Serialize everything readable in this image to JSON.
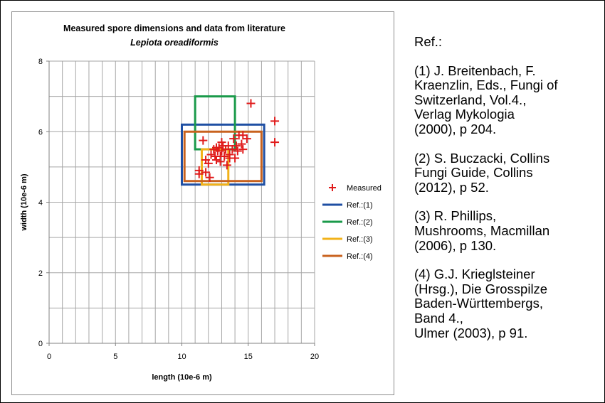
{
  "chart_data": {
    "type": "scatter",
    "title": "Measured spore dimensions and data from literature",
    "subtitle": "Lepiota oreadiformis",
    "xlabel": "length (10e-6 m)",
    "ylabel": "width (10e-6 m)",
    "xlim": [
      0,
      20
    ],
    "ylim": [
      0,
      8
    ],
    "x_ticks": [
      "0",
      "5",
      "10",
      "15",
      "20"
    ],
    "y_ticks": [
      "0",
      "2",
      "4",
      "6",
      "8"
    ],
    "grid": true,
    "legend_position": "right",
    "series": [
      {
        "name": "Measured",
        "marker": "plus",
        "color": "#e01b1b",
        "points": [
          [
            15.2,
            6.8
          ],
          [
            17.0,
            6.3
          ],
          [
            17.0,
            5.7
          ],
          [
            14.6,
            5.9
          ],
          [
            14.3,
            5.9
          ],
          [
            13.9,
            5.8
          ],
          [
            14.9,
            5.8
          ],
          [
            14.5,
            5.65
          ],
          [
            14.1,
            5.6
          ],
          [
            14.6,
            5.5
          ],
          [
            14.2,
            5.45
          ],
          [
            13.8,
            5.5
          ],
          [
            13.5,
            5.6
          ],
          [
            13.1,
            5.6
          ],
          [
            12.8,
            5.55
          ],
          [
            12.6,
            5.55
          ],
          [
            12.4,
            5.5
          ],
          [
            12.7,
            5.45
          ],
          [
            13.0,
            5.45
          ],
          [
            13.3,
            5.5
          ],
          [
            13.6,
            5.35
          ],
          [
            13.2,
            5.3
          ],
          [
            12.9,
            5.3
          ],
          [
            12.5,
            5.3
          ],
          [
            12.2,
            5.35
          ],
          [
            13.6,
            5.25
          ],
          [
            14.0,
            5.25
          ],
          [
            12.6,
            5.2
          ],
          [
            12.9,
            5.15
          ],
          [
            11.8,
            5.2
          ],
          [
            11.6,
            5.75
          ],
          [
            12.0,
            5.1
          ],
          [
            13.4,
            5.05
          ],
          [
            11.3,
            4.9
          ],
          [
            11.3,
            4.8
          ],
          [
            11.8,
            4.85
          ],
          [
            12.1,
            4.7
          ],
          [
            13.0,
            5.7
          ]
        ]
      },
      {
        "name": "Ref.:(1)",
        "type": "rect",
        "color": "#1f4fa3",
        "x": [
          10,
          16.2
        ],
        "y": [
          4.5,
          6.2
        ]
      },
      {
        "name": "Ref.:(2)",
        "type": "rect",
        "color": "#1a9a4a",
        "x": [
          11,
          14
        ],
        "y": [
          5.5,
          7
        ]
      },
      {
        "name": "Ref.:(3)",
        "type": "rect",
        "color": "#f2b21a",
        "x": [
          11.5,
          13.5
        ],
        "y": [
          4.5,
          5.5
        ]
      },
      {
        "name": "Ref.:(4)",
        "type": "rect",
        "color": "#c8621e",
        "x": [
          10.2,
          16
        ],
        "y": [
          4.6,
          6
        ]
      }
    ]
  },
  "references": {
    "title": "Ref.:",
    "items": [
      "(1) J. Breitenbach, F.\nKraenzlin, Eds., Fungi of\nSwitzerland, Vol.4.,\nVerlag Mykologia\n(2000), p 204.",
      "(2) S. Buczacki, Collins\nFungi Guide, Collins\n(2012), p 52.",
      "(3) R. Phillips,\nMushrooms, Macmillan\n(2006), p 130.",
      "(4) G.J. Krieglsteiner\n(Hrsg.), Die Grosspilze\nBaden-Württembergs,\nBand 4.,\nUlmer (2003), p 91."
    ]
  }
}
